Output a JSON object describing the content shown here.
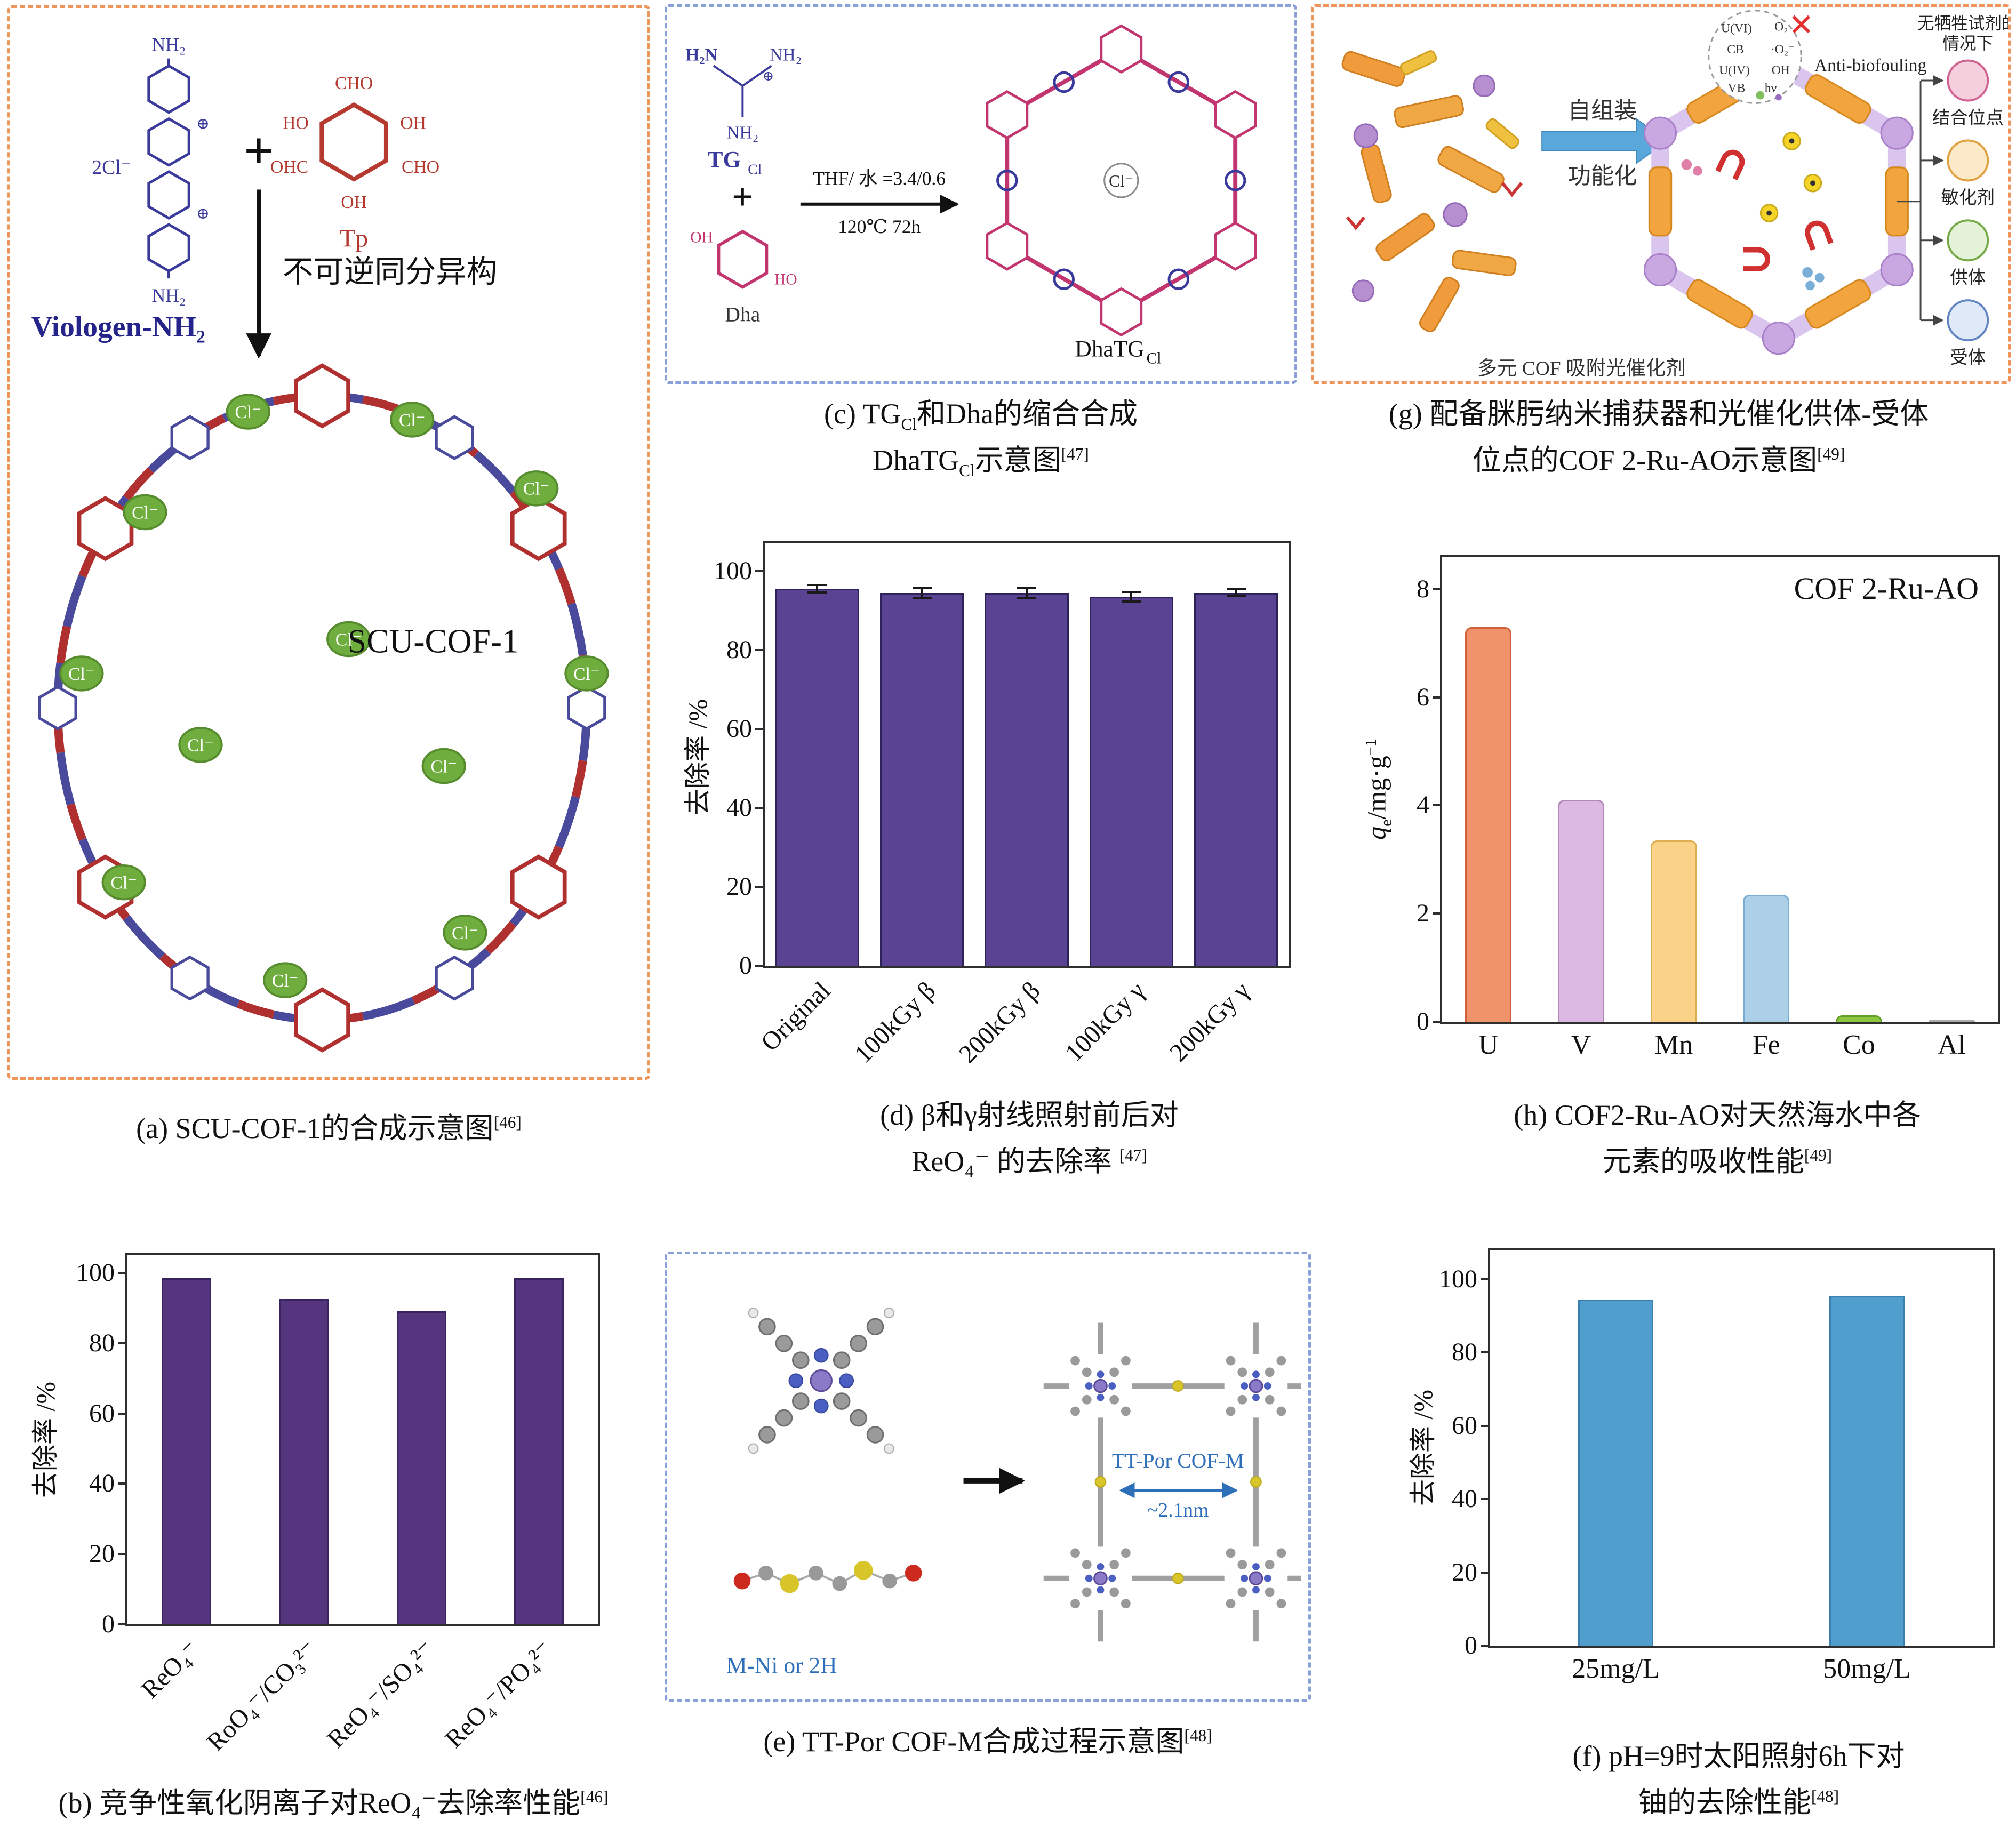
{
  "panel_a": {
    "caption": "(a) SCU-COF-1的合成示意图",
    "ref": "[46]",
    "viologen": "Viologen-NH₂",
    "nh2": "NH₂",
    "cl2": "2Cl⁻",
    "plus": "+",
    "tp": "Tp",
    "cho": "CHO",
    "oh": "OH",
    "ho": "HO",
    "ohc": "OHC",
    "oplus": "⊕",
    "arrow": "不可逆同分异构",
    "product": "SCU-COF-1",
    "cl": "Cl⁻"
  },
  "panel_b": {
    "caption": "(b) 竞争性氧化阴离子对ReO₄⁻去除率性能",
    "ref": "[46]"
  },
  "panel_c": {
    "cap1a": "(c) TG",
    "cap_sub": "Cl",
    "cap1b": "和Dha的缩合合成",
    "cap2a": "DhaTG",
    "cap2b": "示意图",
    "ref": "[47]",
    "tg": "TG",
    "tg_sub": "Cl",
    "h2n": "H₂N",
    "nh2": "NH₂",
    "plus": "+",
    "oh": "OH",
    "ho": "HO",
    "dha": "Dha",
    "cond_top": "THF/ 水 =3.4/0.6",
    "cond_bottom": "120℃ 72h",
    "cl": "Cl⁻",
    "product": "DhaTG",
    "product_sub": "Cl",
    "oplus": "⊕"
  },
  "panel_d": {
    "cap1": "(d) β和γ射线照射前后对",
    "cap2": "ReO₄⁻ 的去除率 ",
    "ref": "[47]"
  },
  "panel_e": {
    "caption": "(e) TT-Por COF-M合成过程示意图",
    "ref": "[48]",
    "label": "TT-Por COF-M",
    "pore": "~2.1nm",
    "m": "M-Ni or 2H"
  },
  "panel_f": {
    "cap1": "(f) pH=9时太阳照射6h下对",
    "cap2": "铀的去除性能",
    "ref": "[48]"
  },
  "panel_g": {
    "cap1": "(g) 配备脒肟纳米捕获器和光催化供体-受体",
    "cap2": "位点的COF 2-Ru-AO示意图",
    "ref": "[49]",
    "assemble": "自组装",
    "functionalize": "功能化",
    "ns1": "无牺牲试剂的",
    "ns2": "情况下",
    "anti": "Anti-biofouling",
    "items": [
      "结合位点",
      "敏化剂",
      "供体",
      "受体"
    ],
    "bottom": "多元 COF 吸附光催化剂",
    "uvi": "U(VI)",
    "uiv": "U(IV)",
    "o2": "O₂",
    "o2r": "·O₂⁻",
    "cb": "CB",
    "vb": "VB",
    "oh": "OH",
    "hv": "hν"
  },
  "panel_h": {
    "cap1": "(h) COF2-Ru-AO对天然海水中各",
    "cap2": "元素的吸收性能",
    "ref": "[49]",
    "q": "q",
    "qsub": "e",
    "qmid": "/mg·g",
    "qsup": "−1"
  },
  "chart_data": [
    {
      "id": "b",
      "type": "bar",
      "categories": [
        "ReO₄⁻",
        "RoO₄⁻/CO₃²⁻",
        "ReO₄⁻/SO₄²⁻",
        "ReO₄⁻/PO₄²⁻"
      ],
      "values": [
        98.5,
        92.5,
        89,
        98.5
      ],
      "ylabel": "去除率 /%",
      "ylim": [
        0,
        105
      ],
      "yticks": [
        0,
        20,
        40,
        60,
        80,
        100
      ],
      "color": "#54357e",
      "border": "#3a2460",
      "bar_frac": 0.42,
      "rotate": true
    },
    {
      "id": "d",
      "type": "bar",
      "categories": [
        "Original",
        "100kGy β",
        "200kGy β",
        "100kGy γ",
        "200kGy γ"
      ],
      "values": [
        95.5,
        94.5,
        94.5,
        93.5,
        94.5
      ],
      "errors": [
        1.2,
        1.5,
        1.5,
        1.5,
        1.2
      ],
      "ylabel": "去除率 /%",
      "ylim": [
        0,
        107
      ],
      "yticks": [
        0,
        20,
        40,
        60,
        80,
        100
      ],
      "color": "#5a4392",
      "border": "#2e2358",
      "bar_frac": 0.8,
      "rotate": true
    },
    {
      "id": "f",
      "type": "bar",
      "categories": [
        "25mg/L",
        "50mg/L"
      ],
      "values": [
        94.5,
        95.5
      ],
      "ylabel": "去除率 /%",
      "ylim": [
        0,
        108
      ],
      "yticks": [
        0,
        20,
        40,
        60,
        80,
        100
      ],
      "color": "#4f9ecd",
      "border": "#3a7fae",
      "bar_frac": 0.3,
      "rotate": false
    },
    {
      "id": "h",
      "type": "bar",
      "title": "COF 2-Ru-AO",
      "categories": [
        "U",
        "V",
        "Mn",
        "Fe",
        "Co",
        "Al"
      ],
      "values": [
        7.3,
        4.1,
        3.35,
        2.35,
        0.12,
        0.02
      ],
      "ylabel": "qe/mg·g−1",
      "ylim": [
        0,
        8.6
      ],
      "yticks": [
        0,
        2,
        4,
        6,
        8
      ],
      "colors": [
        "#f0926a",
        "#dcb9e2",
        "#fad388",
        "#abd0e8",
        "#8dc63f",
        "#cccccc"
      ],
      "borders": [
        "#cf6038",
        "#b288bb",
        "#dfae4e",
        "#7aadd4",
        "#64a02a",
        "#aaaaaa"
      ],
      "bar_frac": 0.5,
      "rotate": false
    }
  ]
}
